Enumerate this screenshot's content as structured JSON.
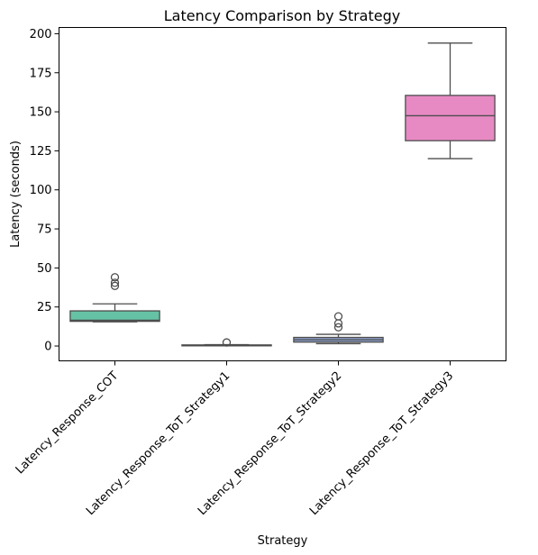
{
  "chart_data": {
    "type": "box",
    "title": "Latency Comparison by Strategy",
    "xlabel": "Strategy",
    "ylabel": "Latency (seconds)",
    "ylim": [
      -9.5,
      204
    ],
    "yticks": [
      0,
      25,
      50,
      75,
      100,
      125,
      150,
      175,
      200
    ],
    "grid": false,
    "legend": "none",
    "categories": [
      "Latency_Response_COT",
      "Latency_Response_ToT_Strategy1",
      "Latency_Response_ToT_Strategy2",
      "Latency_Response_ToT_Strategy3"
    ],
    "boxes": [
      {
        "category": "Latency_Response_COT",
        "whisker_low": 15.5,
        "q1": 15.8,
        "median": 16.5,
        "q3": 22.5,
        "whisker_high": 27,
        "outliers": [
          38.5,
          40.5,
          44
        ],
        "color": "#66c2a5"
      },
      {
        "category": "Latency_Response_ToT_Strategy1",
        "whisker_low": 0.1,
        "q1": 0.3,
        "median": 0.5,
        "q3": 0.7,
        "whisker_high": 0.9,
        "outliers": [
          2.3
        ],
        "color": "#fc8d62"
      },
      {
        "category": "Latency_Response_ToT_Strategy2",
        "whisker_low": 1.5,
        "q1": 2.5,
        "median": 4,
        "q3": 5.5,
        "whisker_high": 7.5,
        "outliers": [
          12,
          14.5,
          19
        ],
        "color": "#8da0cb"
      },
      {
        "category": "Latency_Response_ToT_Strategy3",
        "whisker_low": 120,
        "q1": 131.5,
        "median": 147.5,
        "q3": 160.5,
        "whisker_high": 194,
        "outliers": [],
        "color": "#e78ac3"
      }
    ]
  }
}
